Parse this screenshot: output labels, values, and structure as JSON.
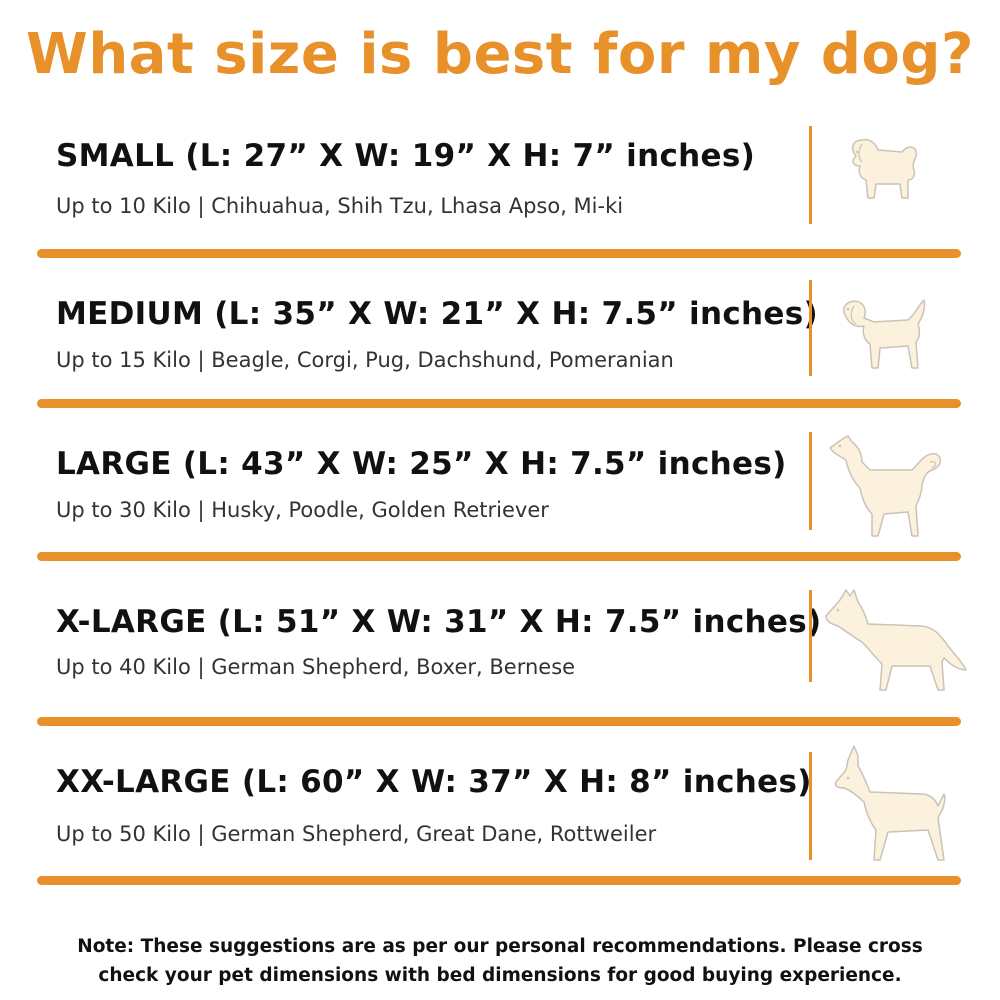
{
  "title": "What size is best for my dog?",
  "sizes": [
    {
      "heading": "SMALL (L: 27” X W: 19” X H: 7” inches)",
      "description": "Up to 10 Kilo | Chihuahua, Shih Tzu, Lhasa Apso, Mi-ki",
      "icon": "small-dog-icon"
    },
    {
      "heading": "MEDIUM (L: 35” X W: 21” X H: 7.5” inches)",
      "description": "Up to 15 Kilo | Beagle, Corgi, Pug, Dachshund, Pomeranian",
      "icon": "medium-dog-icon"
    },
    {
      "heading": "LARGE (L: 43” X W: 25” X H: 7.5” inches)",
      "description": "Up to 30 Kilo | Husky, Poodle, Golden Retriever",
      "icon": "large-dog-icon"
    },
    {
      "heading": "X-LARGE (L: 51” X W: 31” X H: 7.5” inches)",
      "description": "Up to 40 Kilo | German Shepherd, Boxer, Bernese",
      "icon": "xlarge-dog-icon"
    },
    {
      "heading": "XX-LARGE (L: 60” X W: 37” X H: 8” inches)",
      "description": "Up to 50 Kilo | German Shepherd, Great Dane, Rottweiler",
      "icon": "xxlarge-dog-icon"
    }
  ],
  "note": {
    "line1": "Note: These suggestions are as per our personal recommendations. Please cross",
    "line2": "check your pet dimensions with bed dimensions for good buying experience."
  },
  "colors": {
    "accent": "#E8912A",
    "dog_fill": "#FBF1DC",
    "dog_outline": "#C9C3B8",
    "text": "#111111"
  }
}
